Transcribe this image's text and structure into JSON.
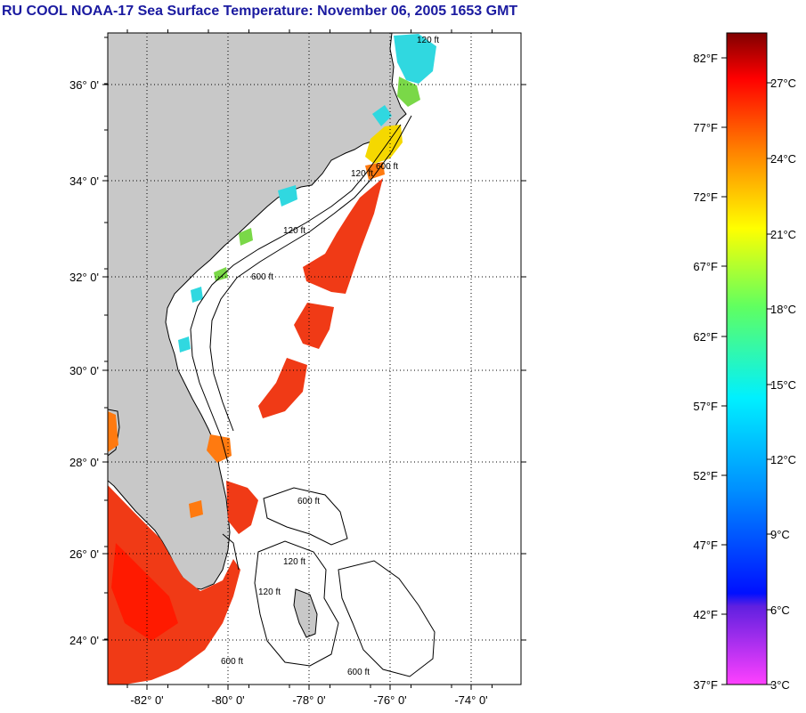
{
  "title": "RU COOL  NOAA-17  Sea Surface Temperature:  November 06, 2005 1653 GMT",
  "map": {
    "lat_ticks": [
      "36° 0'",
      "34° 0'",
      "32° 0'",
      "30° 0'",
      "28° 0'",
      "26° 0'",
      "24° 0'"
    ],
    "lon_ticks": [
      "-82° 0'",
      "-80° 0'",
      "-78° 0'",
      "-76° 0'",
      "-74° 0'"
    ],
    "contour_labels": [
      "120 ft",
      "600 ft",
      "120 ft",
      "600 ft",
      "120 ft",
      "600 ft",
      "120 ft",
      "600 ft",
      "600 ft",
      "120 ft"
    ],
    "colors": {
      "land": "#c8c8c8",
      "sst_warm": "#f03a16",
      "sst_hot": "#ff1a00",
      "sst_orange": "#ff7a10",
      "sst_yellow": "#f5d800",
      "sst_cyan": "#30d8e0",
      "sst_green": "#7ad848"
    }
  },
  "colorbar": {
    "fahrenheit": [
      "82°F",
      "77°F",
      "72°F",
      "67°F",
      "62°F",
      "57°F",
      "52°F",
      "47°F",
      "42°F",
      "37°F"
    ],
    "celsius": [
      "27°C",
      "24°C",
      "21°C",
      "18°C",
      "15°C",
      "12°C",
      "9°C",
      "6°C",
      "3°C"
    ]
  }
}
